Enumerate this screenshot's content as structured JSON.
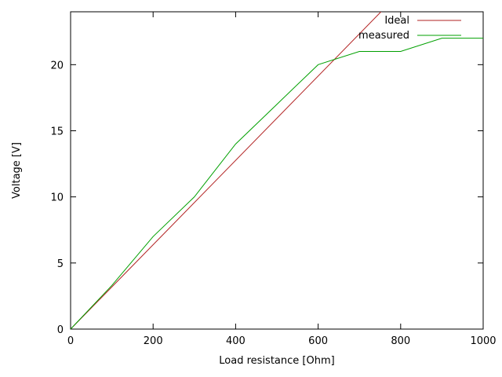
{
  "chart_data": {
    "type": "line",
    "title": "",
    "xlabel": "Load resistance [Ohm]",
    "ylabel": "Voltage [V]",
    "xlim": [
      0,
      1000
    ],
    "ylim": [
      0,
      24
    ],
    "xticks": [
      0,
      200,
      400,
      600,
      800,
      1000
    ],
    "yticks": [
      0,
      5,
      10,
      15,
      20
    ],
    "grid": false,
    "legend_position": "top-right",
    "series": [
      {
        "name": "Ideal",
        "color": "#b22222",
        "points": [
          [
            0,
            0
          ],
          [
            1000,
            31.9
          ]
        ]
      },
      {
        "name": "measured",
        "color": "#00a000",
        "points": [
          [
            0,
            0
          ],
          [
            100,
            3.3
          ],
          [
            200,
            7
          ],
          [
            300,
            10
          ],
          [
            400,
            14
          ],
          [
            500,
            17
          ],
          [
            600,
            20
          ],
          [
            700,
            21
          ],
          [
            800,
            21
          ],
          [
            900,
            22
          ],
          [
            1000,
            22
          ]
        ]
      }
    ]
  }
}
